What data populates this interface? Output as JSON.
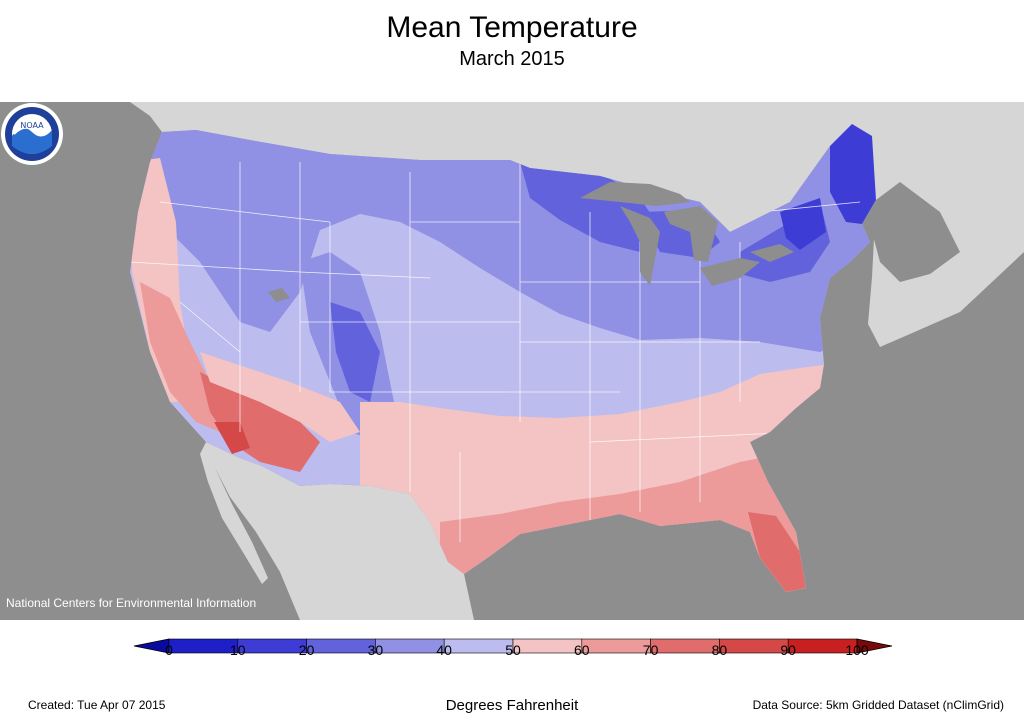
{
  "title": "Mean Temperature",
  "subtitle": "March 2015",
  "map_credit": "National Centers for Environmental Information",
  "logo": {
    "name": "noaa-logo",
    "text": "NOAA"
  },
  "legend": {
    "unit_label": "Degrees Fahrenheit",
    "ticks": [
      "0",
      "10",
      "20",
      "30",
      "40",
      "50",
      "60",
      "70",
      "80",
      "90",
      "100"
    ],
    "bins": [
      {
        "range": "0-10",
        "color": "#1f1fc8"
      },
      {
        "range": "10-20",
        "color": "#3d3dd6"
      },
      {
        "range": "20-30",
        "color": "#6262dc"
      },
      {
        "range": "30-40",
        "color": "#9090e4"
      },
      {
        "range": "40-50",
        "color": "#bcbcee"
      },
      {
        "range": "50-60",
        "color": "#f4c3c3"
      },
      {
        "range": "60-70",
        "color": "#ec9a9a"
      },
      {
        "range": "70-80",
        "color": "#e06c6c"
      },
      {
        "range": "80-90",
        "color": "#d44848"
      },
      {
        "range": "90-100",
        "color": "#c82020"
      }
    ],
    "below_color": "#0a0aa0",
    "above_color": "#7a0a0a"
  },
  "colors": {
    "background_land": "#d6d6d6",
    "ocean": "#8e8e8e",
    "lakes": "#8e8e8e",
    "state_lines": "#ffffff"
  },
  "footer": {
    "created": "Created: Tue Apr 07 2015",
    "source": "Data Source: 5km Gridded Dataset (nClimGrid)"
  }
}
